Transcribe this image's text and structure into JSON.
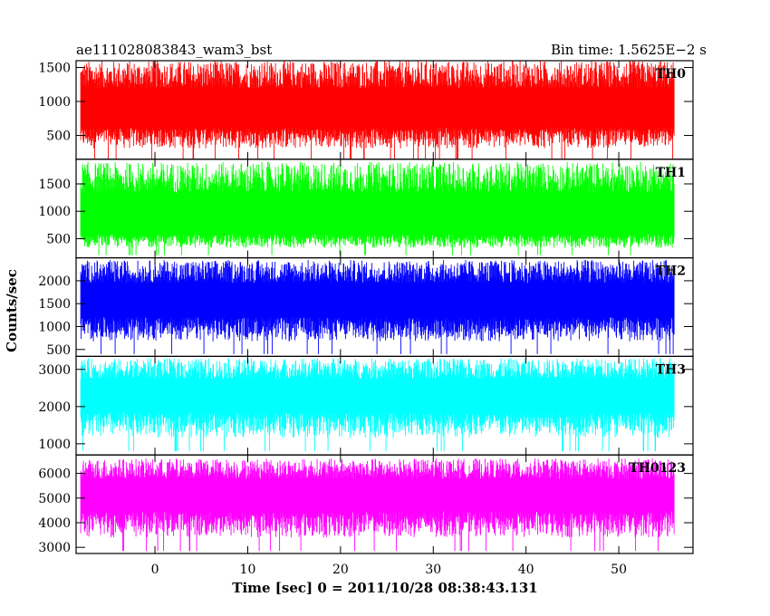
{
  "header": {
    "left_title": "ae111028083843_wam3_bst",
    "right_title": "Bin time: 1.5625E−2 s"
  },
  "chart_data": {
    "type": "line",
    "title": "ae111028083843_wam3_bst",
    "subtitle": "Bin time: 1.5625E−2 s",
    "xlabel": "Time [sec] 0 = 2011/10/28 08:38:43.131",
    "ylabel": "Counts/sec",
    "xlim": [
      -8.5,
      58
    ],
    "data_xrange": [
      -8,
      56
    ],
    "x_ticks": [
      0,
      10,
      20,
      30,
      40,
      50
    ],
    "grid": false,
    "panels": [
      {
        "name": "TH0",
        "color": "#ff0000",
        "ylim": [
          150,
          1600
        ],
        "y_ticks": [
          500,
          1000,
          1500
        ],
        "noise": {
          "base": 700,
          "range": [
            150,
            1600
          ]
        }
      },
      {
        "name": "TH1",
        "color": "#00ff00",
        "ylim": [
          150,
          1950
        ],
        "y_ticks": [
          500,
          1000,
          1500
        ],
        "noise": {
          "base": 650,
          "range": [
            200,
            1900
          ]
        }
      },
      {
        "name": "TH2",
        "color": "#0000ff",
        "ylim": [
          350,
          2500
        ],
        "y_ticks": [
          500,
          1000,
          1500,
          2000
        ],
        "noise": {
          "base": 1350,
          "range": [
            400,
            2450
          ]
        }
      },
      {
        "name": "TH3",
        "color": "#00ffff",
        "ylim": [
          700,
          3350
        ],
        "y_ticks": [
          1000,
          2000,
          3000
        ],
        "noise": {
          "base": 2050,
          "range": [
            800,
            3300
          ]
        }
      },
      {
        "name": "TH0123",
        "color": "#ff00ff",
        "ylim": [
          2750,
          6750
        ],
        "y_ticks": [
          3000,
          4000,
          5000,
          6000
        ],
        "noise": {
          "base": 4750,
          "range": [
            2850,
            6600
          ]
        }
      }
    ]
  }
}
